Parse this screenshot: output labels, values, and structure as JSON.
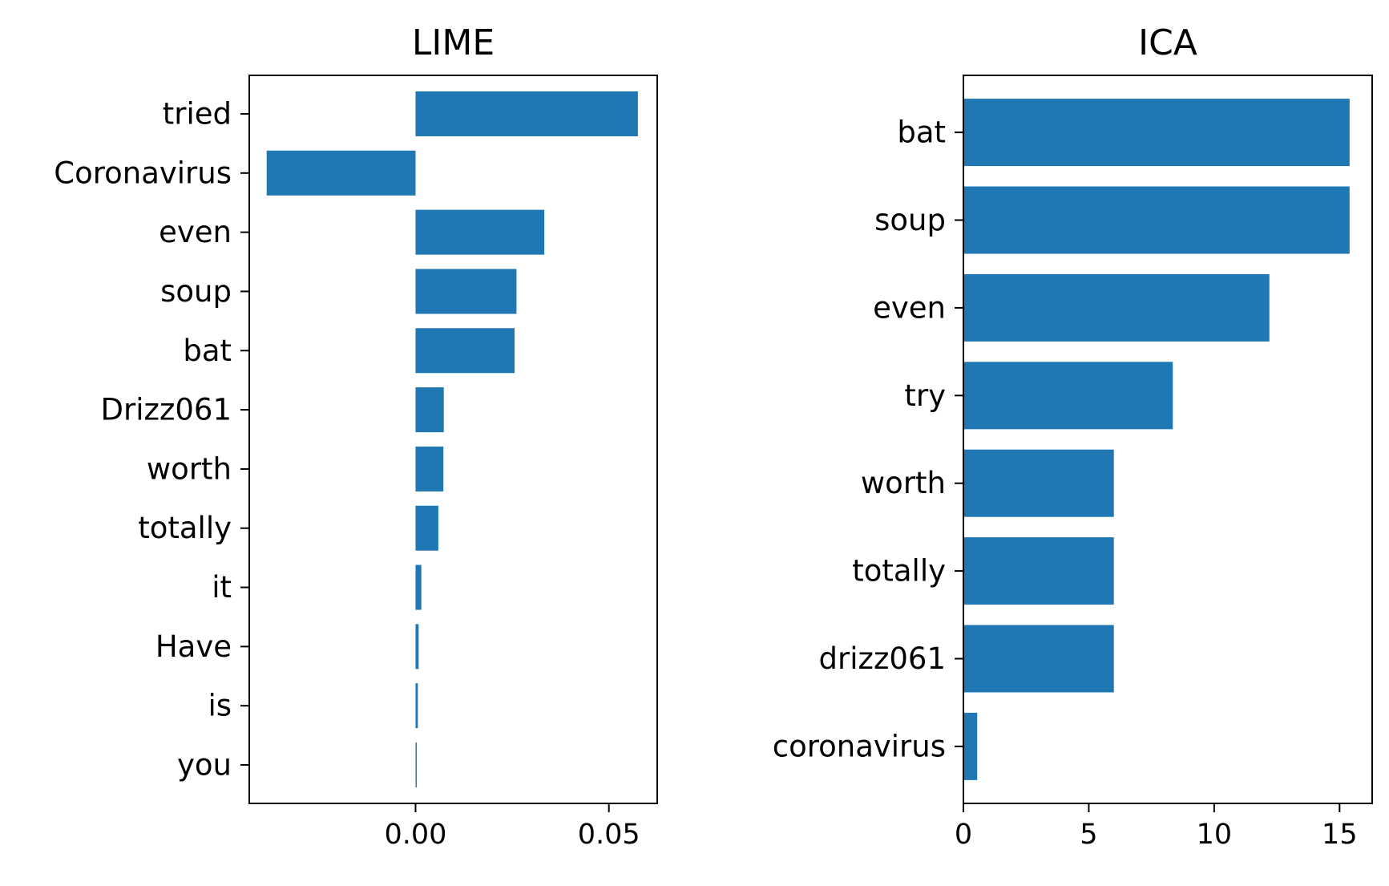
{
  "chart_data": [
    {
      "type": "bar",
      "orientation": "horizontal",
      "title": "LIME",
      "categories": [
        "tried",
        "Coronavirus",
        "even",
        "soup",
        "bat",
        "Drizz061",
        "worth",
        "totally",
        "it",
        "Have",
        "is",
        "you"
      ],
      "values": [
        0.0575,
        -0.0385,
        0.0333,
        0.0261,
        0.0256,
        0.0073,
        0.0072,
        0.0059,
        0.0015,
        0.0008,
        0.0006,
        0.0003
      ],
      "xlim": [
        -0.043,
        0.0625
      ],
      "xticks": [
        0.0,
        0.05
      ],
      "xtick_labels": [
        "0.00",
        "0.05"
      ],
      "xlabel": "",
      "ylabel": "",
      "bar_color": "#1f77b4",
      "grid": false
    },
    {
      "type": "bar",
      "orientation": "horizontal",
      "title": "ICA",
      "categories": [
        "bat",
        "soup",
        "even",
        "try",
        "worth",
        "totally",
        "drizz061",
        "coronavirus"
      ],
      "values": [
        15.4,
        15.4,
        12.2,
        8.35,
        6.0,
        6.0,
        6.0,
        0.55
      ],
      "xlim": [
        0,
        16.3
      ],
      "xticks": [
        0,
        5,
        10,
        15
      ],
      "xtick_labels": [
        "0",
        "5",
        "10",
        "15"
      ],
      "xlabel": "",
      "ylabel": "",
      "bar_color": "#1f77b4",
      "grid": false
    }
  ]
}
